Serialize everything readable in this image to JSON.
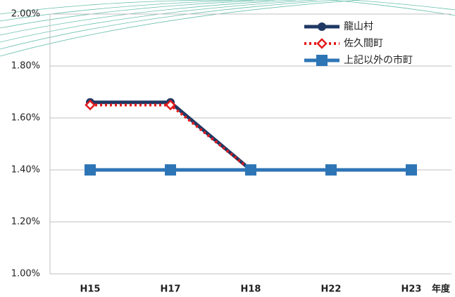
{
  "chart_data": {
    "type": "line",
    "x_label": "年度",
    "categories": [
      "H15",
      "H17",
      "H18",
      "H22",
      "H23"
    ],
    "series": [
      {
        "name": "龍山村",
        "color": "#1f3864",
        "marker": "circle",
        "values": [
          1.66,
          1.66,
          1.4,
          1.4,
          1.4
        ]
      },
      {
        "name": "佐久間町",
        "color": "#e31a1c",
        "marker": "diamond",
        "dotted": true,
        "values": [
          1.65,
          1.65,
          1.4,
          1.4,
          1.4
        ]
      },
      {
        "name": "上記以外の市町",
        "color": "#2e75b6",
        "marker": "square",
        "values": [
          1.4,
          1.4,
          1.4,
          1.4,
          1.4
        ]
      }
    ],
    "ylim": [
      1.0,
      2.0
    ],
    "yticks": [
      {
        "value": 1.0,
        "label": "1.00%"
      },
      {
        "value": 1.2,
        "label": "1.20%"
      },
      {
        "value": 1.4,
        "label": "1.40%"
      },
      {
        "value": 1.6,
        "label": "1.60%"
      },
      {
        "value": 1.8,
        "label": "1.80%"
      },
      {
        "value": 2.0,
        "label": "2.00%"
      }
    ],
    "grid": true
  }
}
